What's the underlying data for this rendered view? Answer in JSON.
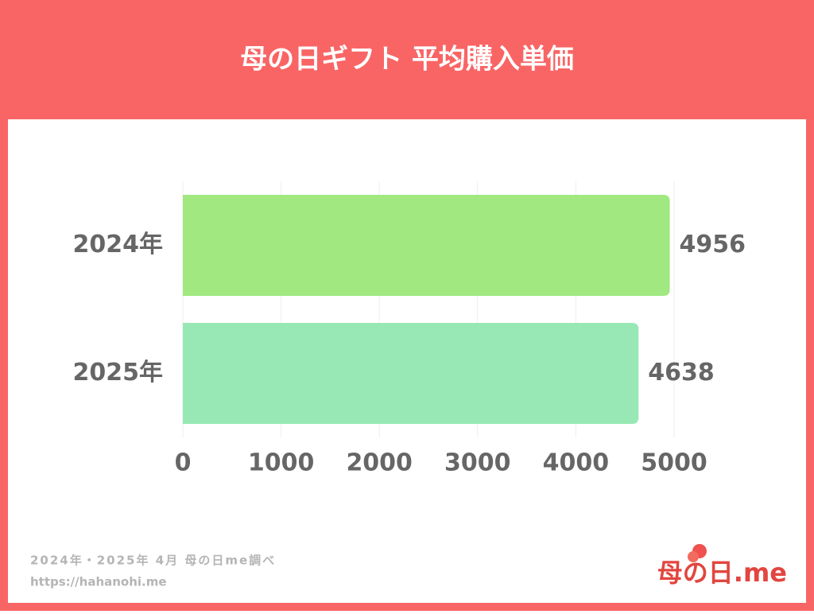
{
  "chart_data": {
    "type": "hbar",
    "title": "母の日ギフト 平均購入単価",
    "categories": [
      "2024年",
      "2025年"
    ],
    "values": [
      4956,
      4638
    ],
    "colors": [
      "#a0e87f",
      "#97e8b5"
    ],
    "xlim": [
      0,
      5000
    ],
    "xticks": [
      0,
      1000,
      2000,
      3000,
      4000,
      5000
    ],
    "grid": true,
    "source": "2024年・2025年 4月 母の日me調べ",
    "url": "https://hahanohi.me",
    "logo": "母の日.me"
  }
}
